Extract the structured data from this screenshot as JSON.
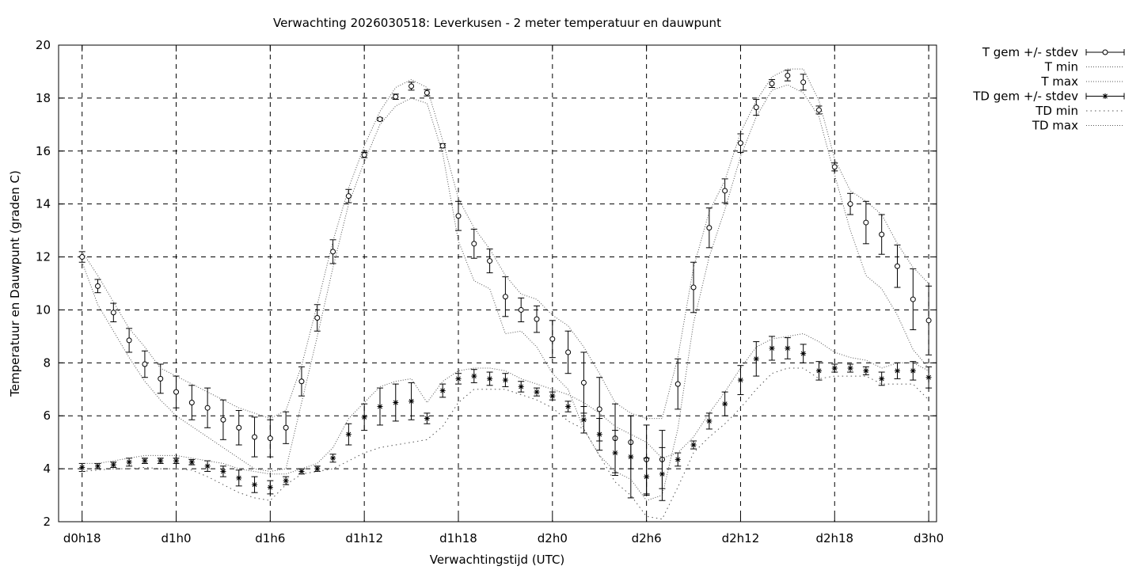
{
  "chart_data": {
    "type": "line",
    "title": "Verwachting 2026030518: Leverkusen - 2 meter temperatuur en dauwpunt",
    "xlabel": "Verwachtingstijd (UTC)",
    "ylabel": "Temperatuur en Dauwpunt (graden C)",
    "xlim": [
      -1.5,
      54.5
    ],
    "ylim": [
      2,
      20
    ],
    "yticks": [
      2,
      4,
      6,
      8,
      10,
      12,
      14,
      16,
      18,
      20
    ],
    "xticks": [
      {
        "x": 0,
        "label": "d0h18"
      },
      {
        "x": 6,
        "label": "d1h0"
      },
      {
        "x": 12,
        "label": "d1h6"
      },
      {
        "x": 18,
        "label": "d1h12"
      },
      {
        "x": 24,
        "label": "d1h18"
      },
      {
        "x": 30,
        "label": "d2h0"
      },
      {
        "x": 36,
        "label": "d2h6"
      },
      {
        "x": 42,
        "label": "d2h12"
      },
      {
        "x": 48,
        "label": "d2h18"
      },
      {
        "x": 54,
        "label": "d3h0"
      }
    ],
    "grid": true,
    "legend_position": "outside-right-top",
    "x": [
      0,
      1,
      2,
      3,
      4,
      5,
      6,
      7,
      8,
      9,
      10,
      11,
      12,
      13,
      14,
      15,
      16,
      17,
      18,
      19,
      20,
      21,
      22,
      23,
      24,
      25,
      26,
      27,
      28,
      29,
      30,
      31,
      32,
      33,
      34,
      35,
      36,
      37,
      38,
      39,
      40,
      41,
      42,
      43,
      44,
      45,
      46,
      47,
      48,
      49,
      50,
      51,
      52,
      53,
      54
    ],
    "series": [
      {
        "name": "T gem +/- stdev",
        "marker": "circle",
        "values": [
          12.0,
          10.9,
          9.9,
          8.85,
          7.95,
          7.4,
          6.9,
          6.5,
          6.3,
          5.85,
          5.55,
          5.2,
          5.15,
          5.55,
          7.3,
          9.7,
          12.2,
          14.3,
          15.85,
          17.2,
          18.05,
          18.45,
          18.2,
          16.2,
          13.55,
          12.5,
          11.85,
          10.5,
          10.0,
          9.65,
          8.9,
          8.4,
          7.25,
          6.25,
          5.15,
          5.0,
          4.35,
          4.35,
          7.2,
          10.85,
          13.1,
          14.5,
          16.3,
          17.65,
          18.55,
          18.85,
          18.6,
          17.55,
          15.4,
          14.0,
          13.3,
          12.85,
          11.65,
          10.4,
          9.6
        ],
        "stdev": [
          0.2,
          0.25,
          0.35,
          0.45,
          0.5,
          0.55,
          0.6,
          0.65,
          0.75,
          0.75,
          0.65,
          0.75,
          0.7,
          0.6,
          0.55,
          0.5,
          0.45,
          0.25,
          0.1,
          0.05,
          0.1,
          0.15,
          0.12,
          0.08,
          0.55,
          0.55,
          0.45,
          0.75,
          0.45,
          0.5,
          0.7,
          0.8,
          1.15,
          1.2,
          1.3,
          1.0,
          1.3,
          1.1,
          0.95,
          0.95,
          0.75,
          0.45,
          0.35,
          0.3,
          0.15,
          0.2,
          0.3,
          0.15,
          0.15,
          0.4,
          0.8,
          0.75,
          0.8,
          1.15,
          1.3
        ]
      },
      {
        "name": "T min",
        "style": "dotted",
        "values": [
          11.8,
          10.2,
          9.2,
          8.2,
          7.3,
          6.6,
          6.0,
          5.6,
          5.2,
          4.8,
          4.4,
          4.0,
          3.9,
          4.0,
          6.5,
          9.0,
          11.6,
          14.0,
          15.6,
          17.0,
          17.7,
          18.0,
          17.8,
          15.9,
          12.6,
          11.1,
          10.8,
          9.1,
          9.2,
          8.6,
          7.6,
          7.0,
          5.5,
          4.5,
          3.9,
          3.6,
          2.8,
          3.0,
          5.5,
          9.5,
          12.0,
          13.8,
          15.8,
          17.3,
          18.3,
          18.5,
          18.2,
          17.3,
          15.1,
          13.0,
          11.3,
          10.8,
          9.8,
          8.5,
          7.8
        ]
      },
      {
        "name": "T max",
        "style": "dotted",
        "values": [
          12.2,
          11.3,
          10.3,
          9.3,
          8.6,
          7.8,
          7.5,
          7.2,
          6.9,
          6.6,
          6.3,
          6.1,
          5.9,
          6.2,
          7.9,
          10.2,
          12.6,
          14.6,
          16.2,
          17.5,
          18.4,
          18.7,
          18.4,
          16.4,
          14.2,
          13.1,
          12.3,
          11.3,
          10.6,
          10.4,
          9.8,
          9.4,
          8.6,
          7.6,
          6.5,
          6.1,
          5.9,
          5.9,
          8.2,
          11.6,
          13.7,
          14.9,
          16.7,
          17.9,
          18.8,
          19.1,
          19.1,
          17.9,
          15.7,
          14.5,
          14.1,
          13.6,
          12.5,
          11.6,
          11.0
        ]
      },
      {
        "name": "TD gem +/- stdev",
        "marker": "star",
        "values": [
          4.05,
          4.1,
          4.15,
          4.25,
          4.3,
          4.3,
          4.3,
          4.25,
          4.1,
          3.9,
          3.65,
          3.4,
          3.3,
          3.55,
          3.9,
          4.0,
          4.4,
          5.3,
          5.95,
          6.35,
          6.5,
          6.55,
          5.9,
          6.95,
          7.4,
          7.5,
          7.4,
          7.35,
          7.1,
          6.9,
          6.75,
          6.35,
          5.85,
          5.3,
          4.6,
          4.45,
          3.7,
          3.8,
          4.35,
          4.9,
          5.8,
          6.45,
          7.35,
          8.15,
          8.55,
          8.55,
          8.35,
          7.7,
          7.8,
          7.8,
          7.7,
          7.4,
          7.7,
          7.7,
          7.45
        ],
        "stdev": [
          0.15,
          0.1,
          0.1,
          0.15,
          0.1,
          0.1,
          0.1,
          0.1,
          0.2,
          0.2,
          0.3,
          0.3,
          0.25,
          0.15,
          0.1,
          0.1,
          0.15,
          0.4,
          0.5,
          0.7,
          0.7,
          0.7,
          0.2,
          0.25,
          0.2,
          0.25,
          0.25,
          0.25,
          0.2,
          0.15,
          0.15,
          0.2,
          0.5,
          0.6,
          0.85,
          1.55,
          0.7,
          1.0,
          0.25,
          0.15,
          0.3,
          0.45,
          0.55,
          0.65,
          0.45,
          0.4,
          0.35,
          0.35,
          0.15,
          0.15,
          0.15,
          0.25,
          0.3,
          0.35,
          0.4
        ]
      },
      {
        "name": "TD min",
        "style": "dotted",
        "values": [
          3.9,
          3.95,
          4.0,
          4.0,
          4.05,
          4.0,
          4.0,
          3.95,
          3.7,
          3.4,
          3.1,
          2.9,
          2.8,
          3.4,
          3.8,
          3.9,
          4.0,
          4.3,
          4.6,
          4.8,
          4.9,
          5.0,
          5.1,
          5.6,
          6.5,
          7.0,
          7.0,
          7.0,
          6.8,
          6.6,
          6.3,
          5.8,
          5.5,
          4.5,
          3.5,
          3.0,
          2.2,
          2.1,
          3.3,
          4.6,
          5.2,
          5.7,
          6.3,
          7.0,
          7.6,
          7.8,
          7.8,
          7.4,
          7.5,
          7.5,
          7.5,
          7.2,
          7.2,
          7.2,
          6.6
        ]
      },
      {
        "name": "TD max",
        "style": "dotted",
        "values": [
          4.2,
          4.2,
          4.3,
          4.4,
          4.5,
          4.5,
          4.5,
          4.4,
          4.3,
          4.2,
          4.0,
          3.9,
          3.8,
          3.8,
          4.0,
          4.2,
          4.8,
          5.9,
          6.5,
          7.1,
          7.3,
          7.4,
          6.5,
          7.3,
          7.7,
          7.8,
          7.8,
          7.7,
          7.4,
          7.2,
          7.0,
          6.8,
          6.5,
          6.1,
          5.6,
          5.3,
          5.0,
          4.4,
          4.6,
          5.2,
          6.1,
          6.9,
          7.8,
          8.6,
          8.9,
          9.0,
          9.1,
          8.8,
          8.4,
          8.2,
          8.1,
          7.8,
          8.0,
          8.0,
          7.7
        ]
      }
    ]
  }
}
